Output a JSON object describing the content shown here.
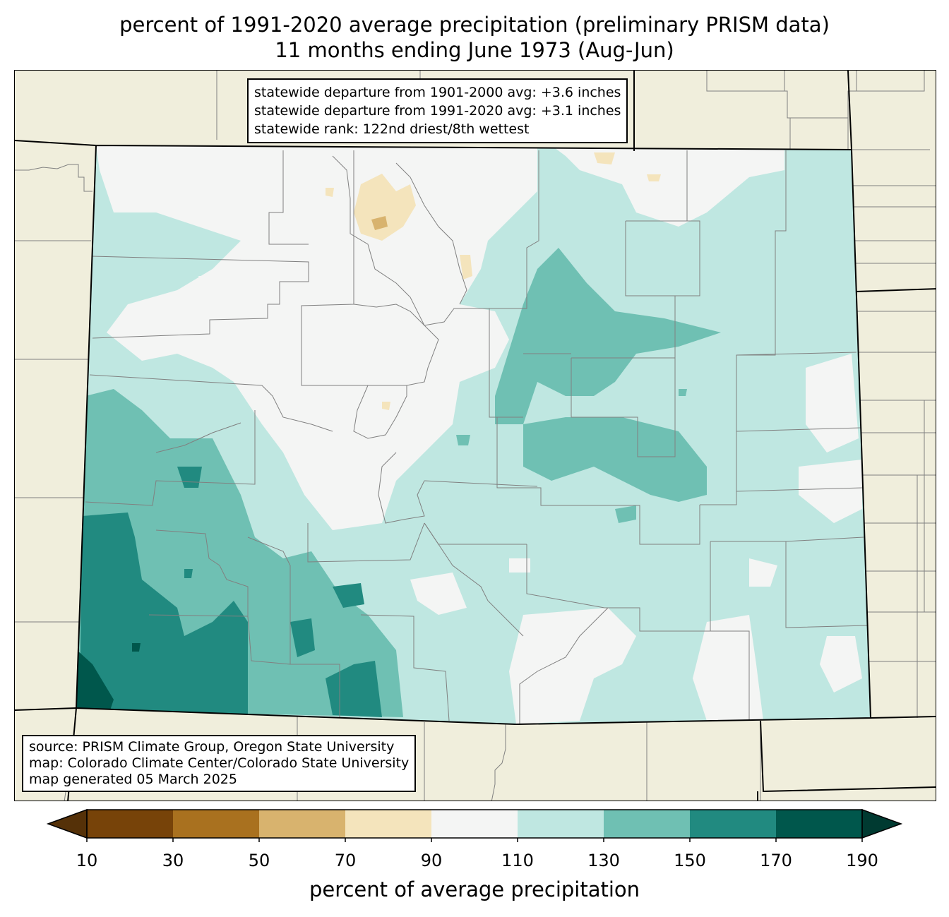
{
  "title": {
    "line1": "percent of 1991-2020 average precipitation (preliminary PRISM data)",
    "line2": "11 months ending June 1973 (Aug-Jun)"
  },
  "stats": {
    "line1": "statewide departure from 1901-2000 avg: +3.6 inches",
    "line2": "statewide departure from 1991-2020 avg: +3.1 inches",
    "line3": "statewide rank: 122nd driest/8th wettest"
  },
  "credits": {
    "line1": "source: PRISM Climate Group, Oregon State University",
    "line2": "map: Colorado Climate Center/Colorado State University",
    "line3": "map generated 05 March 2025"
  },
  "colorbar": {
    "label": "percent of average precipitation",
    "ticks": [
      "10",
      "30",
      "50",
      "70",
      "90",
      "110",
      "130",
      "150",
      "170",
      "190"
    ],
    "colors": [
      "#774309",
      "#a9711f",
      "#d8b36e",
      "#f4e4bc",
      "#f4f5f4",
      "#bfe7e1",
      "#6fc0b3",
      "#218a80",
      "#00574c"
    ],
    "under_color": "#553108",
    "over_color": "#003a31"
  },
  "colors": {
    "background": "#f0eedc",
    "county_lines": "#808080",
    "state_lines": "#000000"
  }
}
